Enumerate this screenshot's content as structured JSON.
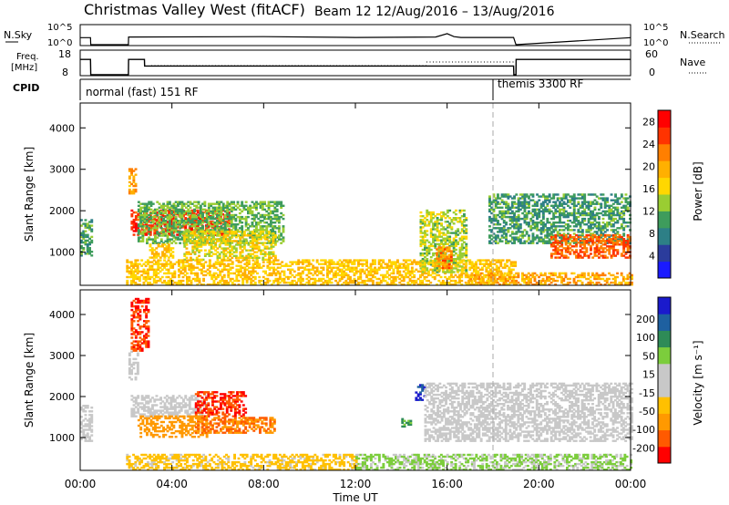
{
  "header": {
    "title": "Christmas Valley West (fitACF)",
    "beam": "Beam 12 12/Aug/2016 – 13/Aug/2016"
  },
  "strips": {
    "nsky_label": "N.Sky",
    "nsky_ticks": [
      "10^5",
      "10^0"
    ],
    "nsearch_label": "N.Search",
    "freq_label_1": "Freq.",
    "freq_label_2": "[MHz]",
    "freq_ticks": [
      "18",
      "8"
    ],
    "nave_ticks": [
      "60",
      "0"
    ],
    "nave_label": "Nave",
    "cpid_label": "CPID",
    "cpid_1": "normal (fast) 151 RF",
    "cpid_2": "themis 3300 RF"
  },
  "colors": {
    "power_scale": [
      "#1a1aff",
      "#2b3c9c",
      "#2d7f86",
      "#3e9c5c",
      "#9acd32",
      "#ffd700",
      "#ffb000",
      "#ff7f00",
      "#ff3300",
      "#ff0000"
    ],
    "velocity_scale": [
      "#ff0000",
      "#ff5a00",
      "#ff9900",
      "#ffc000",
      "#c8c8c8",
      "#c8c8c8",
      "#7ccd3c",
      "#2e8b57",
      "#1e60a0",
      "#1a1acc"
    ],
    "ground_scatter": "#c8c8c8"
  },
  "chart_data": [
    {
      "type": "heatmap",
      "name": "power",
      "ylabel": "Slant Range [km]",
      "xlabel": "Time UT",
      "xlim": [
        0,
        24
      ],
      "ylim": [
        200,
        4600
      ],
      "x_ticks": [
        "00:00",
        "04:00",
        "08:00",
        "12:00",
        "16:00",
        "20:00",
        "00:00"
      ],
      "y_ticks": [
        1000,
        2000,
        3000,
        4000
      ],
      "colorbar_label": "Power [dB]",
      "colorbar_ticks": [
        4,
        8,
        12,
        16,
        20,
        24,
        28
      ],
      "colorbar_range": [
        0,
        30
      ],
      "regions": [
        {
          "t0": 0.0,
          "t1": 0.45,
          "r0": 900,
          "r1": 1800,
          "v": 10
        },
        {
          "t0": 2.1,
          "t1": 2.4,
          "r0": 2400,
          "r1": 3000,
          "v": 20
        },
        {
          "t0": 2.2,
          "t1": 6.5,
          "r0": 1400,
          "r1": 2000,
          "v": 26
        },
        {
          "t0": 2.5,
          "t1": 8.8,
          "r0": 1200,
          "r1": 2200,
          "v": 12
        },
        {
          "t0": 3.0,
          "t1": 4.0,
          "r0": 850,
          "r1": 1200,
          "v": 18
        },
        {
          "t0": 4.5,
          "t1": 8.5,
          "r0": 800,
          "r1": 1500,
          "v": 16
        },
        {
          "t0": 2.0,
          "t1": 19.0,
          "r0": 200,
          "r1": 800,
          "v": 18
        },
        {
          "t0": 14.8,
          "t1": 16.8,
          "r0": 500,
          "r1": 2000,
          "v": 14
        },
        {
          "t0": 15.5,
          "t1": 16.2,
          "r0": 600,
          "r1": 1100,
          "v": 22
        },
        {
          "t0": 16.8,
          "t1": 24.0,
          "r0": 200,
          "r1": 500,
          "v": 20
        },
        {
          "t0": 17.8,
          "t1": 24.0,
          "r0": 1200,
          "r1": 2400,
          "v": 10
        },
        {
          "t0": 20.5,
          "t1": 24.0,
          "r0": 850,
          "r1": 1400,
          "v": 24
        }
      ]
    },
    {
      "type": "heatmap",
      "name": "velocity",
      "ylabel": "Slant Range [km]",
      "xlabel": "Time UT",
      "xlim": [
        0,
        24
      ],
      "ylim": [
        200,
        4600
      ],
      "x_ticks": [
        "00:00",
        "04:00",
        "08:00",
        "12:00",
        "16:00",
        "20:00",
        "00:00"
      ],
      "y_ticks": [
        1000,
        2000,
        3000,
        4000
      ],
      "colorbar_label": "Velocity [m s⁻¹]",
      "colorbar_ticks": [
        200,
        100,
        50,
        15,
        -15,
        -50,
        -100,
        -200
      ],
      "colorbar_range": [
        -250,
        250
      ],
      "regions": [
        {
          "t0": 0.0,
          "t1": 0.45,
          "r0": 900,
          "r1": 1800,
          "v": 0,
          "g": true
        },
        {
          "t0": 2.1,
          "t1": 2.5,
          "r0": 2400,
          "r1": 3100,
          "v": 0,
          "g": true
        },
        {
          "t0": 2.2,
          "t1": 3.0,
          "r0": 3100,
          "r1": 4400,
          "v": -200
        },
        {
          "t0": 2.2,
          "t1": 5.5,
          "r0": 1500,
          "r1": 2000,
          "v": 0,
          "g": true
        },
        {
          "t0": 5.0,
          "t1": 7.2,
          "r0": 1500,
          "r1": 2100,
          "v": -200
        },
        {
          "t0": 2.5,
          "t1": 5.5,
          "r0": 1000,
          "r1": 1500,
          "v": -75
        },
        {
          "t0": 5.0,
          "t1": 8.5,
          "r0": 1100,
          "r1": 1500,
          "v": -100
        },
        {
          "t0": 2.0,
          "t1": 12.0,
          "r0": 200,
          "r1": 600,
          "v": -30
        },
        {
          "t0": 12.0,
          "t1": 24.0,
          "r0": 200,
          "r1": 600,
          "v": 20
        },
        {
          "t0": 14.6,
          "t1": 15.0,
          "r0": 1900,
          "r1": 2300,
          "v": 200
        },
        {
          "t0": 14.0,
          "t1": 14.4,
          "r0": 1250,
          "r1": 1450,
          "v": 60
        },
        {
          "t0": 15.0,
          "t1": 24.0,
          "r0": 900,
          "r1": 2300,
          "v": 0,
          "g": true
        }
      ]
    },
    {
      "type": "line",
      "name": "n_sky",
      "xlim": [
        0,
        24
      ],
      "x": [
        0.0,
        0.45,
        0.46,
        2.1,
        2.11,
        8.0,
        12.0,
        15.5,
        16.0,
        16.3,
        16.6,
        18.9,
        19.0,
        24.0
      ],
      "y": [
        0.35,
        0.35,
        0.0,
        0.0,
        0.38,
        0.4,
        0.36,
        0.38,
        0.55,
        0.4,
        0.36,
        0.36,
        0.0,
        0.35
      ]
    },
    {
      "type": "line",
      "name": "frequency",
      "xlim": [
        0,
        24
      ],
      "x": [
        0.0,
        0.45,
        0.46,
        2.1,
        2.11,
        2.8,
        2.81,
        18.9,
        18.91,
        19.0,
        19.01,
        24.0
      ],
      "y": [
        15,
        15,
        8,
        8,
        15,
        15,
        12,
        12,
        8,
        8,
        15,
        15
      ]
    }
  ],
  "axes": {
    "xlabel": "Time UT"
  }
}
